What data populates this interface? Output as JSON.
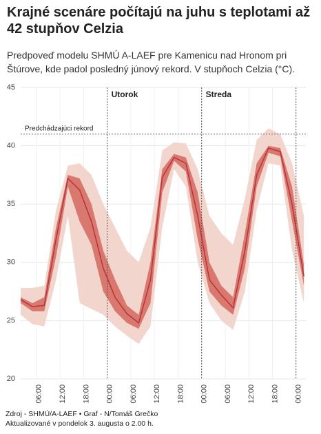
{
  "chart_data": {
    "type": "line",
    "title": "Krajné scenáre počítajú na juhu s teplotami až 42 stupňov Celzia",
    "subtitle": "Predpoveď modelu SHMÚ A-LAEF pre Kamenicu nad Hronom pri Štúrove, kde padol posledný júnový rekord. V stupňoch Celzia (°C).",
    "source": "Zdroj - SHMÚ/A-LAEF • Graf - N/Tomáš Grečko",
    "updated": "Aktualizované v pondelok 3. augusta o 2.00 h.",
    "x": [
      2,
      5,
      8,
      11,
      14,
      17,
      20,
      23,
      26,
      29,
      32,
      35,
      38,
      41,
      44,
      47,
      50,
      53,
      56,
      59,
      62,
      65,
      68,
      71,
      74
    ],
    "values": [
      26.8,
      26.2,
      26.3,
      32,
      37.2,
      36.2,
      33.5,
      29.5,
      27,
      25.6,
      24.8,
      28.5,
      37.3,
      39.0,
      38.5,
      34,
      28.5,
      27.2,
      26.1,
      31,
      37.5,
      39.8,
      39.5,
      35,
      28.8
    ],
    "color": "#b8323a",
    "bands": [
      {
        "color": "#f2d6cd",
        "low": [
          25.5,
          24.7,
          24.5,
          28.5,
          34,
          26.5,
          26,
          25.5,
          24.5,
          23.7,
          23,
          24.5,
          33,
          38,
          36.5,
          30,
          26.5,
          25,
          24.2,
          27.5,
          34.5,
          38.5,
          38.3,
          31,
          26.5
        ],
        "high": [
          27.8,
          27.8,
          28,
          34.5,
          38.3,
          38.5,
          37.5,
          35,
          33,
          31,
          30,
          33,
          39.6,
          40.3,
          40.2,
          38,
          34,
          32.5,
          31.5,
          35.5,
          40.5,
          41.5,
          41,
          38.5,
          34
        ]
      },
      {
        "color": "#d8786e",
        "low": [
          26.5,
          25.8,
          25.8,
          30.5,
          36.5,
          33.5,
          31.5,
          27.5,
          25.8,
          24.8,
          24.3,
          26.5,
          36,
          38.7,
          37.8,
          32,
          27.5,
          26.3,
          25.5,
          29.5,
          36.5,
          39.4,
          39.1,
          33.5,
          28
        ],
        "high": [
          27,
          26.5,
          27,
          33,
          37.5,
          37.2,
          35,
          31,
          28.5,
          26.3,
          25.5,
          30,
          38,
          39.3,
          39,
          36,
          30,
          28,
          27,
          32.5,
          38.5,
          40,
          39.8,
          36.5,
          29.8
        ]
      }
    ],
    "xlim": [
      2,
      74.5
    ],
    "xticks": [
      {
        "value": 6,
        "label": "06:00"
      },
      {
        "value": 12,
        "label": "12:00"
      },
      {
        "value": 18,
        "label": "18:00"
      },
      {
        "value": 24,
        "label": "00:00"
      },
      {
        "value": 30,
        "label": "06:00"
      },
      {
        "value": 36,
        "label": "12:00"
      },
      {
        "value": 42,
        "label": "18:00"
      },
      {
        "value": 48,
        "label": "00:00"
      },
      {
        "value": 54,
        "label": "06:00"
      },
      {
        "value": 60,
        "label": "12:00"
      },
      {
        "value": 66,
        "label": "18:00"
      },
      {
        "value": 72,
        "label": "00:00"
      }
    ],
    "ylim": [
      20,
      45
    ],
    "yticks": [
      20,
      25,
      30,
      35,
      40,
      45
    ],
    "grid": true,
    "reference": {
      "value": 41,
      "label": "Predchádzajúci rekord"
    },
    "day_marks": [
      {
        "x": 24,
        "label": "Utorok"
      },
      {
        "x": 48,
        "label": "Streda"
      },
      {
        "x": 72
      }
    ]
  }
}
